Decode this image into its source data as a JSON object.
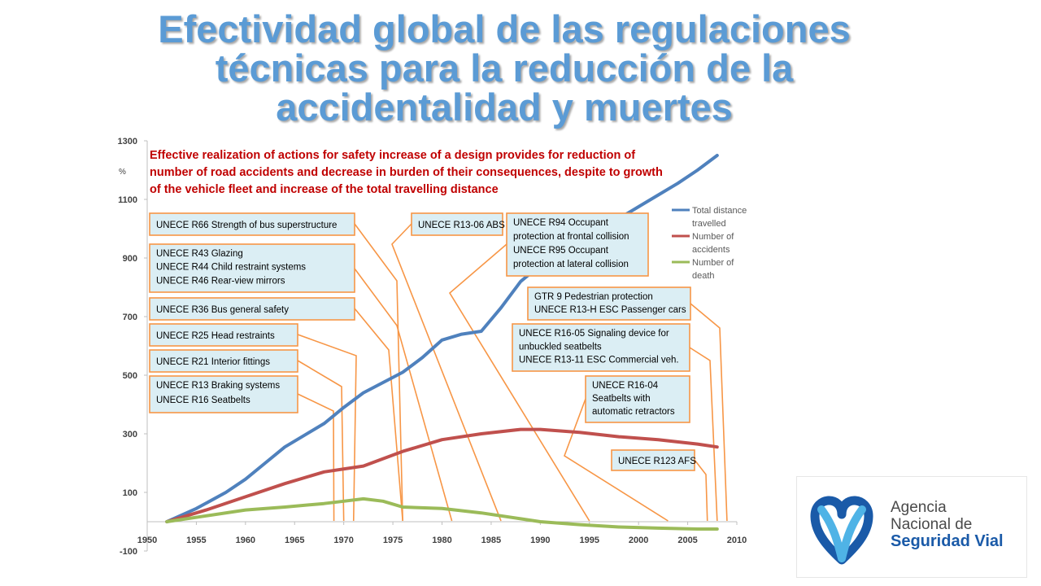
{
  "title_lines": [
    "Efectividad global de las regulaciones",
    "técnicas para la reducción de la",
    "accidentalidad y muertes"
  ],
  "chart_data": {
    "type": "line",
    "subtitle_lines": [
      "Effective realization of actions for safety increase of a design provides for reduction of",
      "number of road accidents and decrease in burden of their consequences, despite to growth",
      "of the vehicle fleet and increase of the total travelling distance"
    ],
    "ylabel": "%",
    "xlim": [
      1950,
      2010
    ],
    "ylim": [
      -100,
      1300
    ],
    "xticks": [
      1950,
      1955,
      1960,
      1965,
      1970,
      1975,
      1980,
      1985,
      1990,
      1995,
      2000,
      2005,
      2010
    ],
    "yticks": [
      -100,
      100,
      300,
      500,
      700,
      900,
      1100,
      1300
    ],
    "series": [
      {
        "name": "Total distance travelled",
        "color": "#4f81bd",
        "x": [
          1952,
          1955,
          1958,
          1960,
          1962,
          1964,
          1966,
          1968,
          1970,
          1972,
          1974,
          1976,
          1978,
          1980,
          1982,
          1984,
          1986,
          1988,
          1990,
          1992,
          1994,
          1996,
          1998,
          2000,
          2002,
          2004,
          2006,
          2008
        ],
        "values": [
          0,
          45,
          100,
          145,
          200,
          255,
          295,
          335,
          390,
          440,
          475,
          510,
          560,
          620,
          640,
          650,
          730,
          820,
          875,
          915,
          960,
          1000,
          1035,
          1075,
          1115,
          1155,
          1200,
          1250
        ]
      },
      {
        "name": "Number of accidents",
        "color": "#c0504d",
        "x": [
          1952,
          1956,
          1960,
          1964,
          1968,
          1972,
          1976,
          1980,
          1984,
          1988,
          1990,
          1994,
          1998,
          2002,
          2006,
          2008
        ],
        "values": [
          0,
          40,
          85,
          130,
          170,
          190,
          240,
          280,
          300,
          315,
          315,
          305,
          290,
          280,
          265,
          255
        ]
      },
      {
        "name": "Number of death",
        "color": "#9bbb59",
        "x": [
          1952,
          1956,
          1960,
          1964,
          1968,
          1970,
          1972,
          1974,
          1976,
          1980,
          1984,
          1988,
          1990,
          1994,
          1998,
          2002,
          2006,
          2008
        ],
        "values": [
          0,
          20,
          40,
          50,
          62,
          70,
          78,
          70,
          50,
          45,
          30,
          10,
          0,
          -10,
          -18,
          -22,
          -25,
          -25
        ]
      }
    ],
    "annotations": [
      {
        "lines": [
          "UNECE R66 Strength of bus superstructure"
        ],
        "target_year": 1976
      },
      {
        "lines": [
          "UNECE R43 Glazing",
          "UNECE R44 Child restraint systems",
          "UNECE R46 Rear-view mirrors"
        ],
        "target_year": 1981
      },
      {
        "lines": [
          "UNECE R36 Bus general safety"
        ],
        "target_year": 1976
      },
      {
        "lines": [
          "UNECE R25 Head restraints"
        ],
        "target_year": 1971
      },
      {
        "lines": [
          "UNECE R21 Interior fittings"
        ],
        "target_year": 1970
      },
      {
        "lines": [
          "UNECE R13 Braking systems",
          "UNECE R16 Seatbelts"
        ],
        "target_year": 1969
      },
      {
        "lines": [
          "UNECE R13-06 ABS"
        ],
        "target_year": 1986
      },
      {
        "lines": [
          "UNECE R94 Occupant",
          "protection at frontal collision",
          "UNECE R95 Occupant",
          "protection at lateral collision"
        ],
        "target_year": 1995
      },
      {
        "lines": [
          "GTR 9 Pedestrian protection",
          "UNECE R13-H ESC Passenger cars"
        ],
        "target_year": 2009
      },
      {
        "lines": [
          "UNECE R16-05 Signaling device for",
          "unbuckled seatbelts",
          "UNECE R13-11 ESC Commercial veh."
        ],
        "target_year": 2008
      },
      {
        "lines": [
          "UNECE R16-04",
          "Seatbelts with",
          "automatic retractors"
        ],
        "target_year": 2003
      },
      {
        "lines": [
          "UNECE R123 AFS"
        ],
        "target_year": 2007
      }
    ],
    "legend_position": "right"
  },
  "logo": {
    "line1": "Agencia",
    "line2": "Nacional de",
    "line3": "Seguridad Vial",
    "color_dark": "#1a5aa8",
    "color_light": "#4fb3e6"
  }
}
